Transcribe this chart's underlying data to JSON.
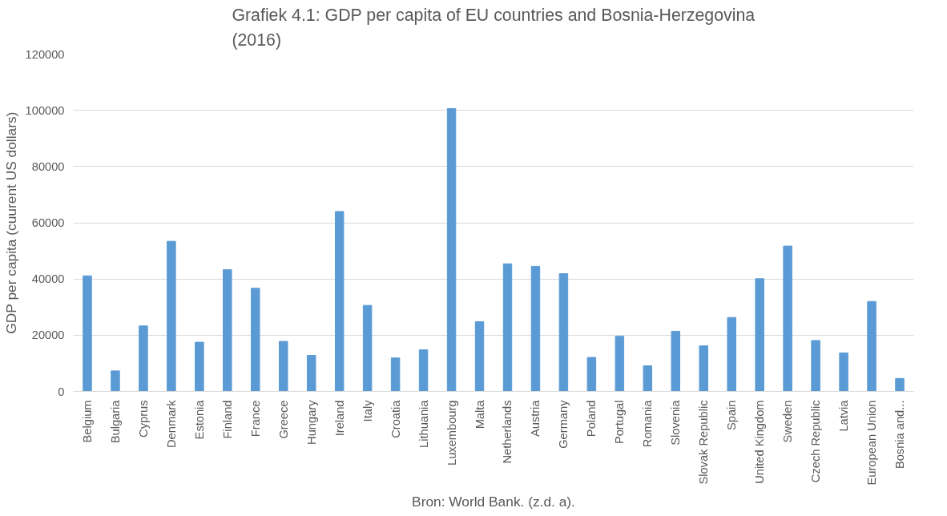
{
  "chart_data": {
    "type": "bar",
    "title": "Grafiek 4.1: GDP per capita of EU countries and Bosnia-Herzegovina (2016)",
    "ylabel": "GDP per capita (cuurent US dollars)",
    "categories": [
      "Belgium",
      "Bulgaria",
      "Cyprus",
      "Denmark",
      "Estonia",
      "Finland",
      "France",
      "Greece",
      "Hungary",
      "Ireland",
      "Italy",
      "Croatia",
      "Lithuania",
      "Luxembourg",
      "Malta",
      "Netherlands",
      "Austria",
      "Germany",
      "Poland",
      "Portugal",
      "Romania",
      "Slovenia",
      "Slovak Republic",
      "Spain",
      "United Kingdom",
      "Sweden",
      "Czech Republic",
      "Latvia",
      "European Union",
      "Bosnia and..."
    ],
    "values": [
      41100,
      7300,
      23300,
      53400,
      17500,
      43300,
      36700,
      17800,
      12800,
      64000,
      30600,
      11900,
      14800,
      100600,
      24800,
      45400,
      44500,
      41900,
      12100,
      19600,
      9100,
      21400,
      16200,
      26300,
      40100,
      51700,
      18100,
      13700,
      32000,
      4600
    ],
    "color": "#5b9bd5",
    "ylim": [
      0,
      120000
    ],
    "yticks": [
      0,
      20000,
      40000,
      60000,
      80000,
      100000,
      120000
    ],
    "grid": "y",
    "annotations": [
      "Bron: World Bank. (z.d. a)."
    ]
  }
}
